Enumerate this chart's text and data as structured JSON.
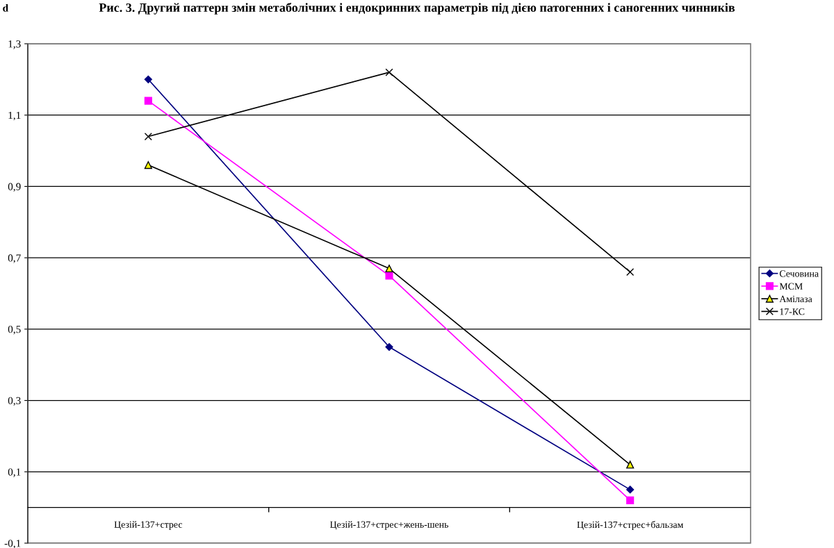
{
  "chart_data": {
    "type": "line",
    "title": "Рис. 3. Другий паттерн змін метаболічних і ендокринних параметрів під дією патогенних і саногенних чинників",
    "ylabel": "d",
    "categories": [
      "Цезій-137+стрес",
      "Цезій-137+стрес+жень-шень",
      "Цезій-137+стрес+бальзам"
    ],
    "series": [
      {
        "name": "Сечовина",
        "color": "#000080",
        "marker": "diamond",
        "values": [
          1.2,
          0.45,
          0.05
        ]
      },
      {
        "name": "МСМ",
        "color": "#ff00ff",
        "marker": "square",
        "values": [
          1.14,
          0.65,
          0.02
        ]
      },
      {
        "name": "Амілаза",
        "color": "#000000",
        "marker": "triangle",
        "values": [
          0.96,
          0.67,
          0.12
        ]
      },
      {
        "name": "17-КС",
        "color": "#000000",
        "marker": "cross",
        "values": [
          1.04,
          1.22,
          0.66
        ]
      }
    ],
    "ylim": [
      -0.1,
      1.3
    ],
    "yticks": [
      {
        "value": -0.1,
        "label": "-0,1"
      },
      {
        "value": 0.1,
        "label": "0,1"
      },
      {
        "value": 0.3,
        "label": "0,3"
      },
      {
        "value": 0.5,
        "label": "0,5"
      },
      {
        "value": 0.7,
        "label": "0,7"
      },
      {
        "value": 0.9,
        "label": "0,9"
      },
      {
        "value": 1.1,
        "label": "1,1"
      },
      {
        "value": 1.3,
        "label": "1,3"
      }
    ],
    "grid": "y",
    "legend": "right",
    "line_style": "solid"
  }
}
